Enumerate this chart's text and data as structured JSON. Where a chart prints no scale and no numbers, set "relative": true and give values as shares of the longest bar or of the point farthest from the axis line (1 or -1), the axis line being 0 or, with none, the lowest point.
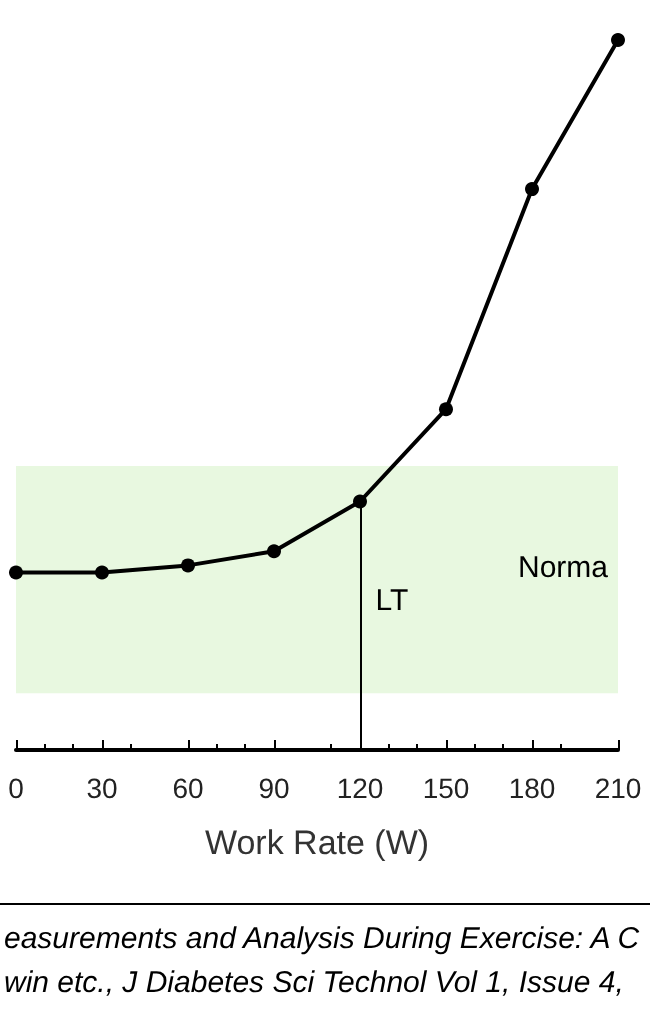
{
  "chart_data": {
    "type": "line",
    "relative": true,
    "xlabel": "Work Rate (W)",
    "x": [
      0,
      30,
      60,
      90,
      120,
      150,
      180,
      210
    ],
    "series": [
      {
        "color": "#000000",
        "values": [
          0.25,
          0.25,
          0.26,
          0.28,
          0.35,
          0.48,
          0.79,
          1.0
        ]
      }
    ],
    "xlim": [
      0,
      210
    ],
    "xticks": [
      0,
      30,
      60,
      90,
      120,
      150,
      180,
      210
    ],
    "bands": [
      {
        "axis": "y",
        "from": 0.08,
        "to": 0.4,
        "label": "Norma",
        "color": "#e8f8e0"
      }
    ],
    "ref_lines": [
      {
        "axis": "x",
        "value": 120,
        "label": "LT",
        "color": "#000000"
      }
    ],
    "marker": "circle",
    "line_style": "solid",
    "grid": false,
    "annotations": [
      "easurements and Analysis During Exercise: A C",
      "win etc., J Diabetes Sci Technol Vol 1, Issue 4,"
    ]
  }
}
